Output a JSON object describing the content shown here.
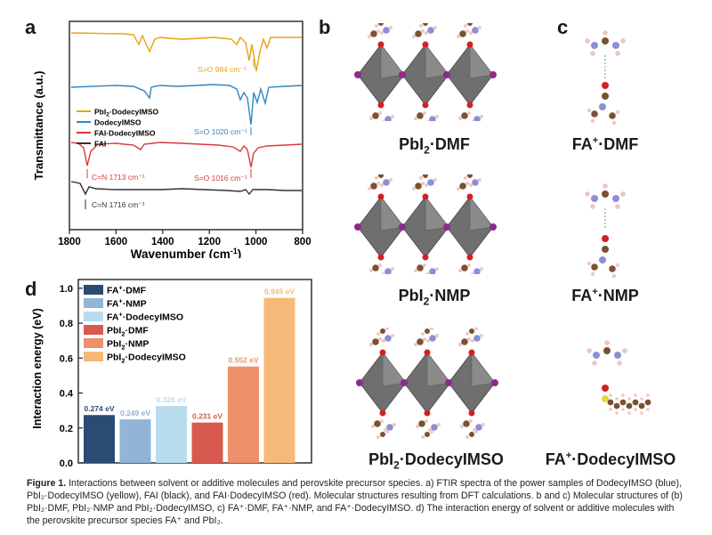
{
  "panels": {
    "a": "a",
    "b": "b",
    "c": "c",
    "d": "d"
  },
  "colors": {
    "yellow": "#e8a20f",
    "blue": "#2e86c1",
    "red": "#d93a3a",
    "black": "#333333",
    "pbi": "#6f6f6f",
    "iodine": "#8e2a8e",
    "carbon": "#7a5230",
    "nitrogen": "#8c8fd4",
    "oxygen": "#d32020",
    "hydrogen": "#f2c6c6",
    "sulfur": "#e6d73a"
  },
  "ftir": {
    "ylabel": "Transmittance (a.u.)",
    "xlabel": "Wavenumber (cm",
    "xlabel_sup": "-1",
    "xlabel_close": ")",
    "xticks": [
      "1800",
      "1600",
      "1400",
      "1200",
      "1000",
      "800"
    ],
    "legend": [
      {
        "pre": "PbI",
        "sub": "2",
        "post": "·DodecyIMSO",
        "color": "#e8a20f"
      },
      {
        "pre": "DodecyIMSO",
        "sub": "",
        "post": "",
        "color": "#2e86c1"
      },
      {
        "pre": "FAI·DodecyIMSO",
        "sub": "",
        "post": "",
        "color": "#d93a3a"
      },
      {
        "pre": "FAI",
        "sub": "",
        "post": "",
        "color": "#333333"
      }
    ],
    "annotations": {
      "so984": "S=O 984 cm⁻¹",
      "so1020": "S=O 1020 cm⁻¹",
      "cn1713": "C=N 1713 cm⁻¹",
      "so1016": "S=O 1016 cm⁻¹",
      "cn1716": "C=N 1716 cm⁻¹"
    }
  },
  "molecules": {
    "b1": {
      "pre": "PbI",
      "sub": "2",
      "post": "·DMF"
    },
    "b2": {
      "pre": "PbI",
      "sub": "2",
      "post": "·NMP"
    },
    "b3": {
      "pre": "PbI",
      "sub": "2",
      "post": "·DodecyIMSO"
    },
    "c1": {
      "pre": "FA",
      "sup": "+",
      "post": "·DMF"
    },
    "c2": {
      "pre": "FA",
      "sup": "+",
      "post": "·NMP"
    },
    "c3": {
      "pre": "FA",
      "sup": "+",
      "post": "·DodecyIMSO"
    }
  },
  "chart_data": {
    "type": "bar",
    "title": "",
    "xlabel": "",
    "ylabel": "Interaction energy (eV)",
    "ylim": [
      0,
      1.05
    ],
    "yticks": [
      "0.0",
      "0.2",
      "0.4",
      "0.6",
      "0.8",
      "1.0"
    ],
    "categories": [
      "FA⁺·DMF",
      "FA⁺·NMP",
      "FA⁺·DodecyIMSO",
      "PbI₂·DMF",
      "PbI₂·NMP",
      "PbI₂·DodecyIMSO"
    ],
    "values": [
      0.274,
      0.249,
      0.326,
      0.231,
      0.552,
      0.945
    ],
    "value_labels": [
      "0.274 eV",
      "0.249 eV",
      "0.326 eV",
      "0.231 eV",
      "0.552 eV",
      "0.945 eV"
    ],
    "colors": [
      "#2c4b73",
      "#92b4d6",
      "#b9dcec",
      "#d85a4f",
      "#ef906a",
      "#f6b977"
    ],
    "legend": [
      {
        "pre": "FA",
        "sup": "+",
        "post": "·DMF"
      },
      {
        "pre": "FA",
        "sup": "+",
        "post": "·NMP"
      },
      {
        "pre": "FA",
        "sup": "+",
        "post": "·DodecyIMSO"
      },
      {
        "pre": "PbI",
        "sub": "2",
        "post": "·DMF"
      },
      {
        "pre": "PbI",
        "sub": "2",
        "post": "·NMP"
      },
      {
        "pre": "PbI",
        "sub": "2",
        "post": "·DodecyIMSO"
      }
    ],
    "legend_position": "top-left"
  },
  "caption": {
    "label": "Figure 1.",
    "text": "Interactions between solvent or additive molecules and perovskite precursor species. a) FTIR spectra of the power samples of DodecyIMSO (blue), PbI₂·DodecyIMSO (yellow), FAI (black), and FAI·DodecyIMSO (red). Molecular structures resulting from DFT calculations. b and c) Molecular structures of (b) PbI₂·DMF, PbI₂·NMP and PbI₂·DodecyIMSO, c) FA⁺·DMF, FA⁺·NMP, and FA⁺·DodecyIMSO. d) The interaction energy of solvent or additive molecules with the perovskite precursor species FA⁺ and PbI₂."
  }
}
